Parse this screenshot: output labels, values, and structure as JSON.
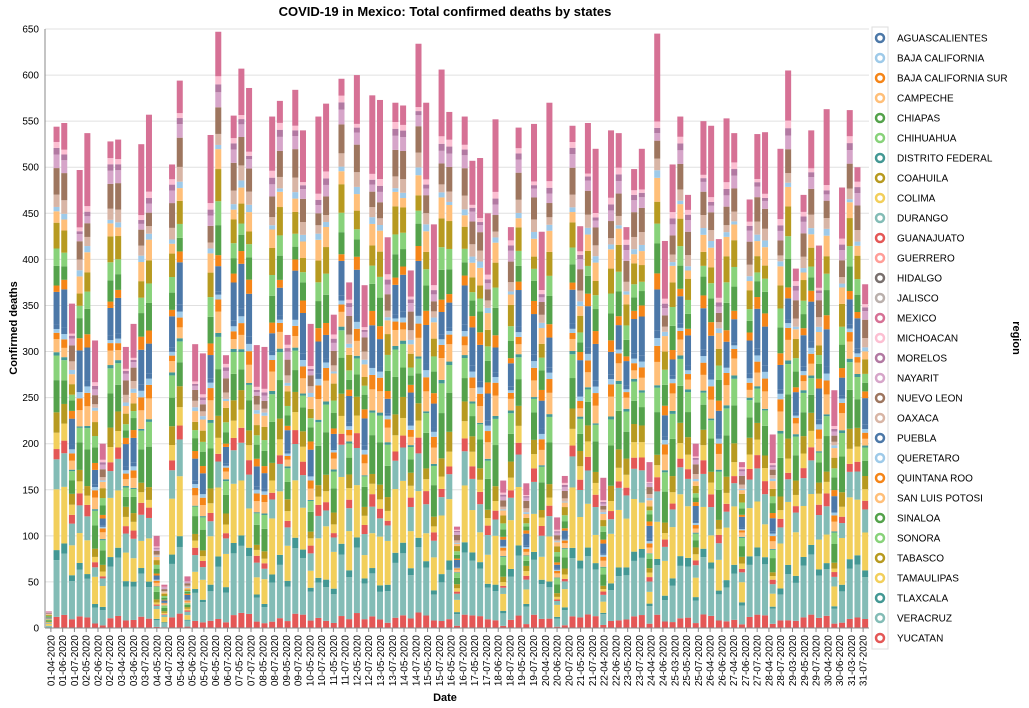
{
  "chart_data": {
    "type": "bar",
    "stacked": true,
    "title": "COVID-19 in Mexico: Total confirmed deaths by states",
    "xlabel": "Date",
    "ylabel": "Confirmed deaths",
    "ylim": [
      0,
      650
    ],
    "yticks": [
      0,
      50,
      100,
      150,
      200,
      250,
      300,
      350,
      400,
      450,
      500,
      550,
      600,
      650
    ],
    "grid": true,
    "legend": {
      "title": "region",
      "position": "right"
    },
    "x_ticks": [
      "01-04-2020",
      "01-06-2020",
      "01-07-2020",
      "02-05-2020",
      "02-06-2020",
      "02-07-2020",
      "03-04-2020",
      "03-06-2020",
      "03-07-2020",
      "04-05-2020",
      "04-07-2020",
      "05-04-2020",
      "05-06-2020",
      "05-07-2020",
      "06-05-2020",
      "06-07-2020",
      "07-05-2020",
      "07-07-2020",
      "08-05-2020",
      "08-07-2020",
      "09-05-2020",
      "09-07-2020",
      "10-05-2020",
      "10-07-2020",
      "11-05-2020",
      "11-07-2020",
      "12-05-2020",
      "12-07-2020",
      "13-05-2020",
      "13-07-2020",
      "14-05-2020",
      "14-07-2020",
      "15-05-2020",
      "15-07-2020",
      "16-05-2020",
      "16-07-2020",
      "17-05-2020",
      "17-07-2020",
      "18-06-2020",
      "18-07-2020",
      "19-05-2020",
      "19-07-2020",
      "20-04-2020",
      "20-06-2020",
      "20-07-2020",
      "21-05-2020",
      "21-07-2020",
      "22-04-2020",
      "22-06-2020",
      "23-05-2020",
      "23-07-2020",
      "24-04-2020",
      "24-06-2020",
      "25-03-2020",
      "25-05-2020",
      "25-07-2020",
      "26-04-2020",
      "26-06-2020",
      "27-04-2020",
      "27-06-2020",
      "27-07-2020",
      "28-04-2020",
      "28-07-2020",
      "29-03-2020",
      "29-05-2020",
      "29-07-2020",
      "30-04-2020",
      "30-06-2020",
      "31-03-2020",
      "31-07-2020"
    ],
    "totals": [
      18,
      544,
      548,
      352,
      497,
      537,
      312,
      200,
      528,
      530,
      305,
      330,
      525,
      557,
      100,
      47,
      503,
      594,
      56,
      308,
      298,
      535,
      647,
      296,
      556,
      607,
      586,
      307,
      305,
      555,
      572,
      318,
      584,
      540,
      330,
      555,
      569,
      340,
      596,
      375,
      600,
      372,
      578,
      573,
      424,
      570,
      567,
      388,
      634,
      570,
      438,
      606,
      560,
      110,
      555,
      507,
      510,
      450,
      552,
      160,
      435,
      543,
      157,
      547,
      430,
      570,
      120,
      165,
      545,
      436,
      548,
      520,
      163,
      540,
      537,
      435,
      498,
      520,
      180,
      645,
      420,
      503,
      555,
      470,
      200,
      550,
      545,
      422,
      553,
      537,
      180,
      465,
      536,
      538,
      210,
      520,
      605,
      390,
      470,
      540,
      415,
      563,
      258,
      478,
      562,
      500,
      373
    ],
    "series": [
      {
        "name": "AGUASCALIENTES",
        "color": "#4c78a8"
      },
      {
        "name": "BAJA CALIFORNIA",
        "color": "#9ecae9"
      },
      {
        "name": "BAJA CALIFORNIA SUR",
        "color": "#f58518"
      },
      {
        "name": "CAMPECHE",
        "color": "#ffbf79"
      },
      {
        "name": "CHIAPAS",
        "color": "#54a24b"
      },
      {
        "name": "CHIHUAHUA",
        "color": "#88d27a"
      },
      {
        "name": "DISTRITO FEDERAL",
        "color": "#439894"
      },
      {
        "name": "COAHUILA",
        "color": "#b79a20"
      },
      {
        "name": "COLIMA",
        "color": "#f2cf5b"
      },
      {
        "name": "DURANGO",
        "color": "#83bcb6"
      },
      {
        "name": "GUANAJUATO",
        "color": "#e45756"
      },
      {
        "name": "GUERRERO",
        "color": "#ff9d98"
      },
      {
        "name": "HIDALGO",
        "color": "#79706e"
      },
      {
        "name": "JALISCO",
        "color": "#bab0ac"
      },
      {
        "name": "MEXICO",
        "color": "#d67195"
      },
      {
        "name": "MICHOACAN",
        "color": "#fcbfd2"
      },
      {
        "name": "MORELOS",
        "color": "#b279a2"
      },
      {
        "name": "NAYARIT",
        "color": "#d6a5c9"
      },
      {
        "name": "NUEVO LEON",
        "color": "#9e765f"
      },
      {
        "name": "OAXACA",
        "color": "#d8b5a5"
      },
      {
        "name": "PUEBLA",
        "color": "#4c78a8"
      },
      {
        "name": "QUERETARO",
        "color": "#9ecae9"
      },
      {
        "name": "QUINTANA ROO",
        "color": "#f58518"
      },
      {
        "name": "SAN LUIS POTOSI",
        "color": "#ffbf79"
      },
      {
        "name": "SINALOA",
        "color": "#54a24b"
      },
      {
        "name": "SONORA",
        "color": "#88d27a"
      },
      {
        "name": "TABASCO",
        "color": "#b79a20"
      },
      {
        "name": "TAMAULIPAS",
        "color": "#f2cf5b"
      },
      {
        "name": "TLAXCALA",
        "color": "#439894"
      },
      {
        "name": "VERACRUZ",
        "color": "#83bcb6"
      },
      {
        "name": "YUCATAN",
        "color": "#e45756"
      }
    ],
    "stack_order": [
      30,
      29,
      28,
      27,
      9,
      10,
      8,
      7,
      4,
      5,
      6,
      3,
      2,
      1,
      0,
      20,
      22,
      24,
      25,
      26,
      23,
      21,
      19,
      18,
      17,
      16,
      15,
      14,
      13,
      12,
      11
    ],
    "stack_weights": [
      0.02,
      0.09,
      0.015,
      0.09,
      0.05,
      0.02,
      0.025,
      0.03,
      0.06,
      0.04,
      0.005,
      0.03,
      0.02,
      0.01,
      0.01,
      0.06,
      0.02,
      0.04,
      0.03,
      0.04,
      0.03,
      0.01,
      0.02,
      0.04,
      0.02,
      0.01,
      0.01,
      0.15,
      0.01,
      0.015,
      0.015
    ],
    "top_segment_weights": {
      "17": 0.02,
      "6": 0.15,
      "1": 0.035
    }
  }
}
